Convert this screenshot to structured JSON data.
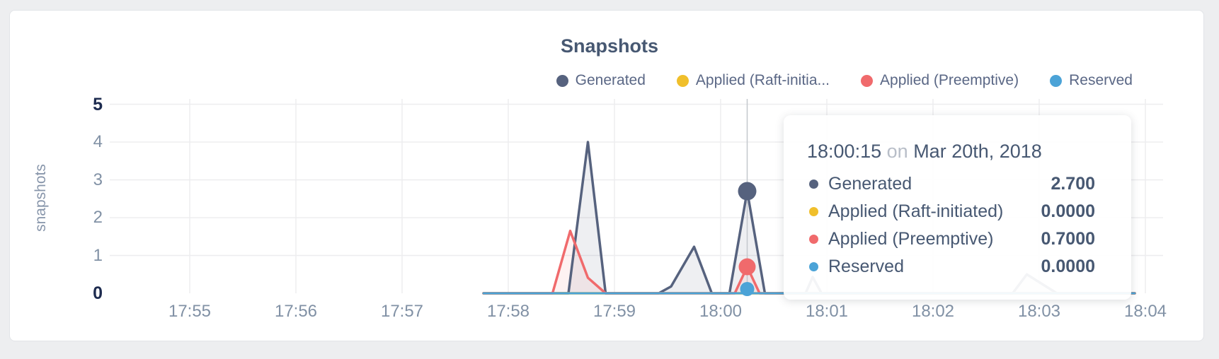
{
  "page": {
    "background": "#edeef0"
  },
  "chart": {
    "title": "Snapshots",
    "y_axis": {
      "label": "snapshots",
      "ticks": [
        0,
        1,
        2,
        3,
        4,
        5
      ],
      "emphasized_ticks": [
        0,
        5
      ]
    },
    "x_axis": {
      "ticks": [
        "17:55",
        "17:56",
        "17:57",
        "17:58",
        "17:59",
        "18:00",
        "18:01",
        "18:02",
        "18:03",
        "18:04"
      ]
    },
    "legend": [
      {
        "label": "Generated",
        "color": "#56627e"
      },
      {
        "label": "Applied (Raft-initia...",
        "color": "#f0bf2b"
      },
      {
        "label": "Applied (Preemptive)",
        "color": "#f06a6c"
      },
      {
        "label": "Reserved",
        "color": "#4ba3d7"
      }
    ]
  },
  "chart_data": {
    "type": "line",
    "title": "Snapshots",
    "xlabel": "",
    "ylabel": "snapshots",
    "ylim": [
      0,
      5
    ],
    "grid": true,
    "legend_position": "top-right",
    "x_ticks": [
      "17:55",
      "17:56",
      "17:57",
      "17:58",
      "17:59",
      "18:00",
      "18:01",
      "18:02",
      "18:03",
      "18:04"
    ],
    "series": [
      {
        "name": "Generated",
        "color": "#56627e",
        "fill": "rgba(86,98,126,0.10)",
        "points": [
          [
            "17:57:46",
            0
          ],
          [
            "17:58:34",
            0
          ],
          [
            "17:58:45",
            4.0
          ],
          [
            "17:58:55",
            0
          ],
          [
            "17:59:25",
            0
          ],
          [
            "17:59:32",
            0.18
          ],
          [
            "17:59:45",
            1.23
          ],
          [
            "17:59:55",
            0
          ],
          [
            "18:00:05",
            0
          ],
          [
            "18:00:15",
            2.7
          ],
          [
            "18:00:25",
            0
          ],
          [
            "18:00:48",
            0
          ],
          [
            "18:00:52",
            0.43
          ],
          [
            "18:00:57",
            0
          ],
          [
            "18:02:45",
            0
          ],
          [
            "18:02:53",
            0.5
          ],
          [
            "18:03:10",
            0
          ],
          [
            "18:03:54",
            0
          ]
        ]
      },
      {
        "name": "Applied (Raft-initiated)",
        "color": "#f0bf2b",
        "fill": null,
        "points": [
          [
            "17:57:46",
            0
          ],
          [
            "18:03:54",
            0
          ]
        ]
      },
      {
        "name": "Applied (Preemptive)",
        "color": "#f06a6c",
        "fill": "rgba(240,106,108,0.09)",
        "points": [
          [
            "17:57:46",
            0
          ],
          [
            "17:58:25",
            0
          ],
          [
            "17:58:35",
            1.65
          ],
          [
            "17:58:45",
            0.41
          ],
          [
            "17:58:55",
            0
          ],
          [
            "18:00:08",
            0
          ],
          [
            "18:00:15",
            0.7
          ],
          [
            "18:00:22",
            0
          ],
          [
            "18:03:54",
            0
          ]
        ]
      },
      {
        "name": "Reserved",
        "color": "#4ba3d7",
        "fill": null,
        "points": [
          [
            "17:57:46",
            0
          ],
          [
            "18:03:54",
            0
          ]
        ]
      }
    ],
    "crosshair_time": "18:00:15",
    "highlighted_points": [
      {
        "series": "Generated",
        "time": "18:00:15",
        "value": 2.7,
        "color": "#56627e",
        "radius": 13
      },
      {
        "series": "Applied (Preemptive)",
        "time": "18:00:15",
        "value": 0.7,
        "color": "#f06a6c",
        "radius": 12
      },
      {
        "series": "Reserved",
        "time": "18:00:15",
        "value": 0,
        "color": "#4ba3d7",
        "radius": 10
      }
    ]
  },
  "tooltip": {
    "time": "18:00:15",
    "conjunction": "on",
    "date": "Mar 20th, 2018",
    "rows": [
      {
        "label": "Generated",
        "value": "2.700",
        "color": "#56627e"
      },
      {
        "label": "Applied (Raft-initiated)",
        "value": "0.0000",
        "color": "#f0bf2b"
      },
      {
        "label": "Applied (Preemptive)",
        "value": "0.7000",
        "color": "#f06a6c"
      },
      {
        "label": "Reserved",
        "value": "0.0000",
        "color": "#4ba3d7"
      }
    ]
  }
}
